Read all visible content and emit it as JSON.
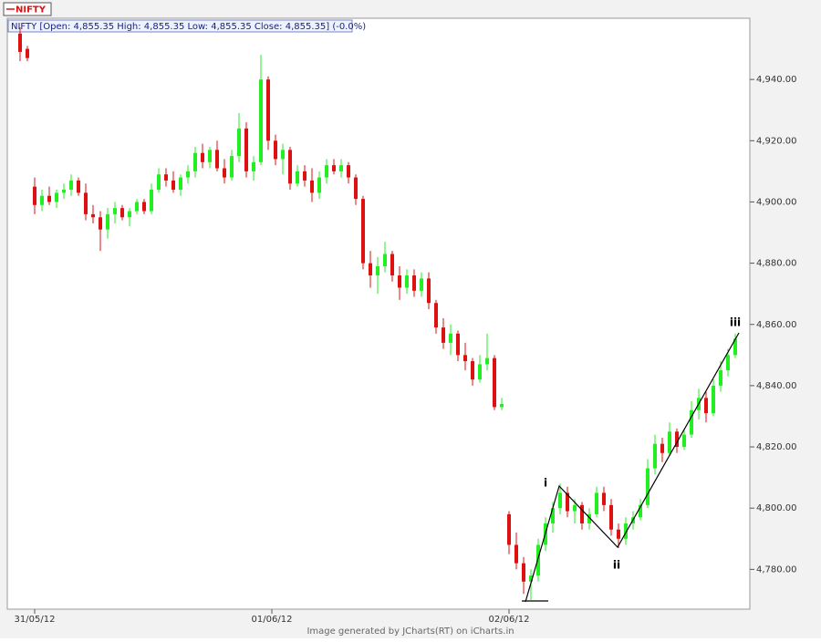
{
  "chart_data": {
    "type": "candlestick",
    "legend": "NIFTY",
    "info": "NIFTY [Open: 4,855.35 High: 4,855.35 Low: 4,855.35 Close: 4,855.35] (-0.0%)",
    "footer": "Image generated by  JCharts(RT) on iCharts.in",
    "annotations": [
      "i",
      "ii",
      "iii"
    ],
    "up_color": "#22ee22",
    "down_color": "#dd1111",
    "xlim": [
      -1.75,
      100
    ],
    "xticks": [
      {
        "value": 2,
        "label": "31/05/12"
      },
      {
        "value": 34.5,
        "label": "01/06/12"
      },
      {
        "value": 67,
        "label": "02/06/12"
      }
    ],
    "ylim": [
      4767,
      4960
    ],
    "yticks": [
      {
        "value": 4780,
        "label": "4,780.00"
      },
      {
        "value": 4800,
        "label": "4,800.00"
      },
      {
        "value": 4820,
        "label": "4,820.00"
      },
      {
        "value": 4840,
        "label": "4,840.00"
      },
      {
        "value": 4860,
        "label": "4,860.00"
      },
      {
        "value": 4880,
        "label": "4,880.00"
      },
      {
        "value": 4900,
        "label": "4,900.00"
      },
      {
        "value": 4920,
        "label": "4,920.00"
      },
      {
        "value": 4940,
        "label": "4,940.00"
      }
    ],
    "ohlc": [
      [
        4955,
        4957,
        4946,
        4949
      ],
      [
        4950,
        4951,
        4946,
        4947
      ],
      [
        4905,
        4908,
        4896,
        4899
      ],
      [
        4899,
        4904,
        4897,
        4902
      ],
      [
        4902,
        4905,
        4899,
        4900
      ],
      [
        4900,
        4904,
        4898,
        4903
      ],
      [
        4903,
        4906,
        4901,
        4904
      ],
      [
        4904,
        4909,
        4902,
        4907
      ],
      [
        4907,
        4908,
        4902,
        4903
      ],
      [
        4903,
        4906,
        4894,
        4896
      ],
      [
        4896,
        4899,
        4893,
        4895
      ],
      [
        4895,
        4897,
        4884,
        4891
      ],
      [
        4891,
        4898,
        4888,
        4896
      ],
      [
        4896,
        4900,
        4893,
        4898
      ],
      [
        4898,
        4899,
        4894,
        4895
      ],
      [
        4895,
        4898,
        4892,
        4897
      ],
      [
        4897,
        4901,
        4896,
        4900
      ],
      [
        4900,
        4901,
        4896,
        4897
      ],
      [
        4897,
        4906,
        4896,
        4904
      ],
      [
        4904,
        4911,
        4903,
        4909
      ],
      [
        4909,
        4911,
        4905,
        4907
      ],
      [
        4907,
        4910,
        4903,
        4904
      ],
      [
        4904,
        4909,
        4902,
        4908
      ],
      [
        4908,
        4912,
        4906,
        4910
      ],
      [
        4910,
        4918,
        4908,
        4916
      ],
      [
        4916,
        4919,
        4911,
        4913
      ],
      [
        4913,
        4918,
        4911,
        4917
      ],
      [
        4917,
        4920,
        4910,
        4911
      ],
      [
        4911,
        4914,
        4906,
        4908
      ],
      [
        4908,
        4917,
        4907,
        4915
      ],
      [
        4915,
        4929,
        4913,
        4924
      ],
      [
        4924,
        4926,
        4908,
        4910
      ],
      [
        4910,
        4915,
        4907,
        4913
      ],
      [
        4913,
        4948,
        4912,
        4940
      ],
      [
        4940,
        4941,
        4917,
        4920
      ],
      [
        4920,
        4922,
        4912,
        4914
      ],
      [
        4914,
        4919,
        4909,
        4917
      ],
      [
        4917,
        4918,
        4904,
        4906
      ],
      [
        4906,
        4912,
        4905,
        4910
      ],
      [
        4910,
        4912,
        4905,
        4907
      ],
      [
        4907,
        4911,
        4900,
        4903
      ],
      [
        4903,
        4910,
        4901,
        4908
      ],
      [
        4908,
        4914,
        4906,
        4912
      ],
      [
        4912,
        4914,
        4909,
        4910
      ],
      [
        4910,
        4914,
        4908,
        4912
      ],
      [
        4912,
        4913,
        4906,
        4908
      ],
      [
        4908,
        4909,
        4899,
        4901
      ],
      [
        4901,
        4902,
        4878,
        4880
      ],
      [
        4880,
        4884,
        4872,
        4876
      ],
      [
        4876,
        4882,
        4870,
        4879
      ],
      [
        4879,
        4887,
        4877,
        4883
      ],
      [
        4883,
        4884,
        4874,
        4876
      ],
      [
        4876,
        4879,
        4868,
        4872
      ],
      [
        4872,
        4878,
        4870,
        4876
      ],
      [
        4876,
        4878,
        4869,
        4871
      ],
      [
        4871,
        4877,
        4869,
        4875
      ],
      [
        4875,
        4877,
        4865,
        4867
      ],
      [
        4867,
        4868,
        4857,
        4859
      ],
      [
        4859,
        4862,
        4852,
        4854
      ],
      [
        4854,
        4860,
        4850,
        4857
      ],
      [
        4857,
        4858,
        4848,
        4850
      ],
      [
        4850,
        4854,
        4845,
        4848
      ],
      [
        4848,
        4849,
        4840,
        4842
      ],
      [
        4842,
        4850,
        4841,
        4847
      ],
      [
        4847,
        4857,
        4845,
        4849
      ],
      [
        4849,
        4850,
        4832,
        4833
      ],
      [
        4833,
        4836,
        4832,
        4834
      ],
      [
        4798,
        4799,
        4785,
        4788
      ],
      [
        4788,
        4792,
        4780,
        4782
      ],
      [
        4782,
        4784,
        4772,
        4776
      ],
      [
        4776,
        4780,
        4770,
        4778
      ],
      [
        4778,
        4790,
        4776,
        4788
      ],
      [
        4788,
        4797,
        4786,
        4795
      ],
      [
        4795,
        4802,
        4792,
        4800
      ],
      [
        4800,
        4808,
        4798,
        4805
      ],
      [
        4805,
        4807,
        4797,
        4799
      ],
      [
        4799,
        4803,
        4795,
        4801
      ],
      [
        4801,
        4802,
        4793,
        4795
      ],
      [
        4795,
        4800,
        4793,
        4798
      ],
      [
        4798,
        4807,
        4797,
        4805
      ],
      [
        4805,
        4807,
        4799,
        4801
      ],
      [
        4801,
        4803,
        4791,
        4793
      ],
      [
        4793,
        4795,
        4787,
        4790
      ],
      [
        4790,
        4797,
        4788,
        4795
      ],
      [
        4795,
        4799,
        4793,
        4797
      ],
      [
        4797,
        4803,
        4796,
        4801
      ],
      [
        4801,
        4816,
        4800,
        4813
      ],
      [
        4813,
        4824,
        4811,
        4821
      ],
      [
        4821,
        4823,
        4815,
        4818
      ],
      [
        4818,
        4828,
        4817,
        4825
      ],
      [
        4825,
        4826,
        4818,
        4820
      ],
      [
        4820,
        4826,
        4819,
        4824
      ],
      [
        4824,
        4835,
        4823,
        4832
      ],
      [
        4832,
        4839,
        4829,
        4836
      ],
      [
        4836,
        4838,
        4828,
        4831
      ],
      [
        4831,
        4842,
        4830,
        4840
      ],
      [
        4840,
        4848,
        4838,
        4845
      ],
      [
        4845,
        4852,
        4843,
        4850
      ],
      [
        4850,
        4857,
        4849,
        4855.35
      ]
    ]
  }
}
